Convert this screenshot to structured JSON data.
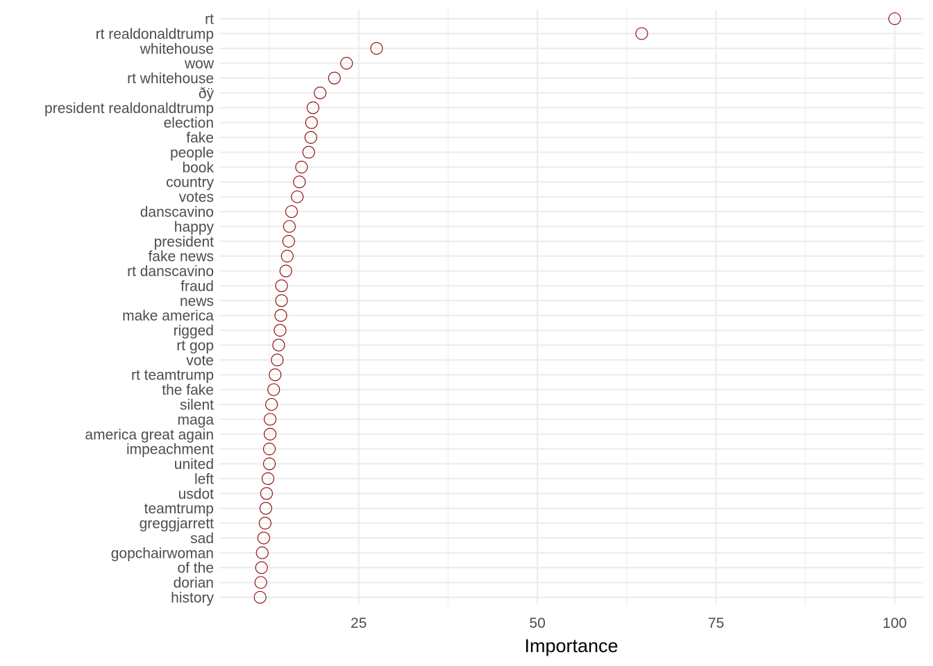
{
  "chart_data": {
    "type": "scatter",
    "title": "",
    "xlabel": "Importance",
    "ylabel": "",
    "xlim": [
      5.5,
      104
    ],
    "x_ticks": [
      25,
      50,
      75,
      100
    ],
    "grid": true,
    "legend": "none",
    "point_color": "#8b0000",
    "categories": [
      "rt",
      "rt realdonaldtrump",
      "whitehouse",
      "wow",
      "rt whitehouse",
      "ðÿ",
      "president realdonaldtrump",
      "election",
      "fake",
      "people",
      "book",
      "country",
      "votes",
      "danscavino",
      "happy",
      "president",
      "fake news",
      "rt danscavino",
      "fraud",
      "news",
      "make america",
      "rigged",
      "rt gop",
      "vote",
      "rt teamtrump",
      "the fake",
      "silent",
      "maga",
      "america great again",
      "impeachment",
      "united",
      "left",
      "usdot",
      "teamtrump",
      "greggjarrett",
      "sad",
      "gopchairwoman",
      "of the",
      "dorian",
      "history"
    ],
    "values": [
      100,
      64.6,
      27.5,
      23.3,
      21.6,
      19.6,
      18.6,
      18.4,
      18.3,
      18.0,
      17.0,
      16.7,
      16.4,
      15.6,
      15.3,
      15.2,
      15.0,
      14.8,
      14.2,
      14.2,
      14.1,
      14.0,
      13.8,
      13.6,
      13.3,
      13.1,
      12.8,
      12.6,
      12.6,
      12.5,
      12.5,
      12.3,
      12.1,
      12.0,
      11.9,
      11.7,
      11.5,
      11.4,
      11.3,
      11.2
    ]
  }
}
